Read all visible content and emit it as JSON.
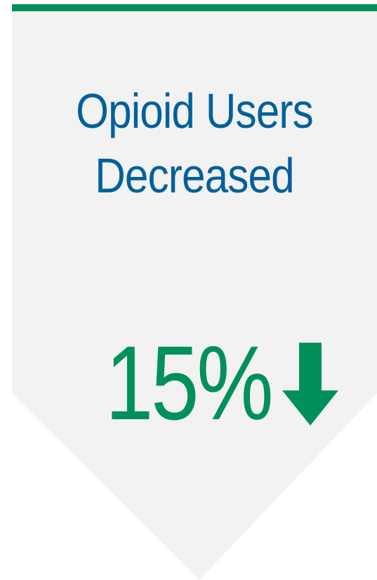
{
  "colors": {
    "panel_background": "#f2f2f2",
    "accent_green": "#00915a",
    "title_blue": "#00609c"
  },
  "banner": {
    "title_line_1": "Opioid Users",
    "title_line_2": "Decreased",
    "stat_value": "15%",
    "stat_icon": "arrow-down-icon"
  }
}
